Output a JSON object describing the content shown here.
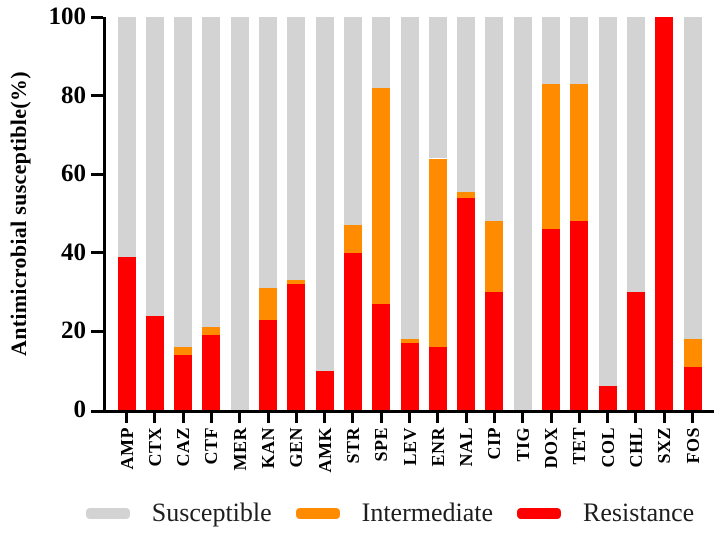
{
  "chart_data": {
    "type": "bar",
    "stacked": true,
    "title": "",
    "xlabel": "",
    "ylabel": "Antimicrobial susceptible(%)",
    "ylim": [
      0,
      100
    ],
    "yticks": [
      0,
      20,
      40,
      60,
      80,
      100
    ],
    "grid": false,
    "legend_position": "bottom",
    "categories": [
      "AMP",
      "CTX",
      "CAZ",
      "CTF",
      "MER",
      "KAN",
      "GEN",
      "AMK",
      "STR",
      "SPE",
      "LEV",
      "ENR",
      "NAL",
      "CIP",
      "TIG",
      "DOX",
      "TET",
      "COL",
      "CHL",
      "SXZ",
      "FOS"
    ],
    "series": [
      {
        "name": "Resistance",
        "color": "#FF0000",
        "values": [
          39,
          24,
          14,
          19,
          0,
          23,
          32,
          10,
          40,
          27,
          17,
          16,
          54,
          30,
          0,
          46,
          48,
          6,
          30,
          100,
          11
        ]
      },
      {
        "name": "Intermediate",
        "color": "#FF8C00",
        "values": [
          0,
          0,
          2,
          2,
          0,
          8,
          1,
          0,
          7,
          55,
          1,
          48,
          1.5,
          18,
          0,
          37,
          35,
          0,
          0,
          0,
          7
        ]
      },
      {
        "name": "Susceptible",
        "color": "#D3D3D3",
        "values": [
          61,
          76,
          84,
          79,
          100,
          69,
          67,
          90,
          53,
          18,
          82,
          36,
          44.5,
          52,
          100,
          17,
          17,
          94,
          70,
          0,
          82
        ]
      }
    ],
    "legend": [
      {
        "label": "Susceptible",
        "color": "#D3D3D3"
      },
      {
        "label": "Intermediate",
        "color": "#FF8C00"
      },
      {
        "label": "Resistance",
        "color": "#FF0000"
      }
    ]
  }
}
